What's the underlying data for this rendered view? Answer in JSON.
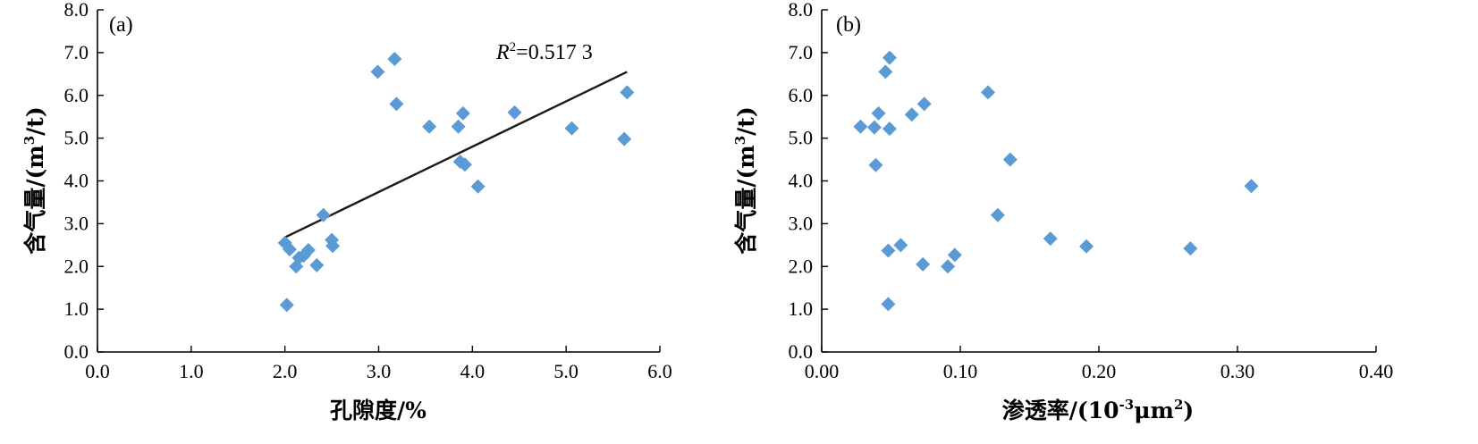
{
  "chart_data": [
    {
      "type": "scatter",
      "panel_label": "(a)",
      "xlabel": "孔隙度/%",
      "ylabel": "含气量/(m³/t)",
      "ylabel_main": "含气量/(m",
      "ylabel_sup": "3",
      "ylabel_tail": "/t)",
      "xlim": [
        0,
        6
      ],
      "ylim": [
        0,
        8
      ],
      "xticks": [
        "0.0",
        "1.0",
        "2.0",
        "3.0",
        "4.0",
        "5.0",
        "6.0"
      ],
      "yticks": [
        "0.0",
        "1.0",
        "2.0",
        "3.0",
        "4.0",
        "5.0",
        "6.0",
        "7.0",
        "8.0"
      ],
      "point_color": "#5B9BD5",
      "annotation": {
        "prefix": "R",
        "sup": "2",
        "text": "=0.517 3"
      },
      "trendline": {
        "x": [
          2.0,
          5.65
        ],
        "y": [
          2.68,
          6.55
        ]
      },
      "points": [
        {
          "x": 2.0,
          "y": 2.55
        },
        {
          "x": 2.05,
          "y": 2.4
        },
        {
          "x": 2.02,
          "y": 1.1
        },
        {
          "x": 2.12,
          "y": 2.0
        },
        {
          "x": 2.15,
          "y": 2.2
        },
        {
          "x": 2.2,
          "y": 2.25
        },
        {
          "x": 2.25,
          "y": 2.38
        },
        {
          "x": 2.34,
          "y": 2.03
        },
        {
          "x": 2.41,
          "y": 3.2
        },
        {
          "x": 2.5,
          "y": 2.62
        },
        {
          "x": 2.51,
          "y": 2.48
        },
        {
          "x": 2.99,
          "y": 6.55
        },
        {
          "x": 3.17,
          "y": 6.85
        },
        {
          "x": 3.19,
          "y": 5.8
        },
        {
          "x": 3.54,
          "y": 5.27
        },
        {
          "x": 3.85,
          "y": 5.27
        },
        {
          "x": 3.87,
          "y": 4.45
        },
        {
          "x": 3.9,
          "y": 5.58
        },
        {
          "x": 3.92,
          "y": 4.38
        },
        {
          "x": 4.06,
          "y": 3.87
        },
        {
          "x": 4.45,
          "y": 5.6
        },
        {
          "x": 5.06,
          "y": 5.23
        },
        {
          "x": 5.62,
          "y": 4.98
        },
        {
          "x": 5.65,
          "y": 6.07
        }
      ]
    },
    {
      "type": "scatter",
      "panel_label": "(b)",
      "xlabel": "渗透率/(10⁻³μm²)",
      "xlabel_main": "渗透率/(10",
      "xlabel_sup1": "-3",
      "xlabel_mid": "μm",
      "xlabel_sup2": "2",
      "xlabel_tail": ")",
      "ylabel": "含气量/(m³/t)",
      "ylabel_main": "含气量/(m",
      "ylabel_sup": "3",
      "ylabel_tail": "/t)",
      "xlim": [
        0,
        0.4
      ],
      "ylim": [
        0,
        8
      ],
      "xticks": [
        "0.00",
        "0.10",
        "0.20",
        "0.30",
        "0.40"
      ],
      "yticks": [
        "0.0",
        "1.0",
        "2.0",
        "3.0",
        "4.0",
        "5.0",
        "6.0",
        "7.0",
        "8.0"
      ],
      "point_color": "#5B9BD5",
      "points": [
        {
          "x": 0.028,
          "y": 5.27
        },
        {
          "x": 0.038,
          "y": 5.25
        },
        {
          "x": 0.041,
          "y": 5.58
        },
        {
          "x": 0.039,
          "y": 4.37
        },
        {
          "x": 0.046,
          "y": 6.55
        },
        {
          "x": 0.049,
          "y": 6.88
        },
        {
          "x": 0.049,
          "y": 5.22
        },
        {
          "x": 0.048,
          "y": 2.37
        },
        {
          "x": 0.048,
          "y": 1.12
        },
        {
          "x": 0.057,
          "y": 2.5
        },
        {
          "x": 0.065,
          "y": 5.55
        },
        {
          "x": 0.074,
          "y": 5.8
        },
        {
          "x": 0.073,
          "y": 2.05
        },
        {
          "x": 0.091,
          "y": 2.0
        },
        {
          "x": 0.096,
          "y": 2.27
        },
        {
          "x": 0.12,
          "y": 6.07
        },
        {
          "x": 0.127,
          "y": 3.2
        },
        {
          "x": 0.136,
          "y": 4.5
        },
        {
          "x": 0.165,
          "y": 2.65
        },
        {
          "x": 0.191,
          "y": 2.47
        },
        {
          "x": 0.266,
          "y": 2.42
        },
        {
          "x": 0.31,
          "y": 3.88
        }
      ]
    }
  ]
}
